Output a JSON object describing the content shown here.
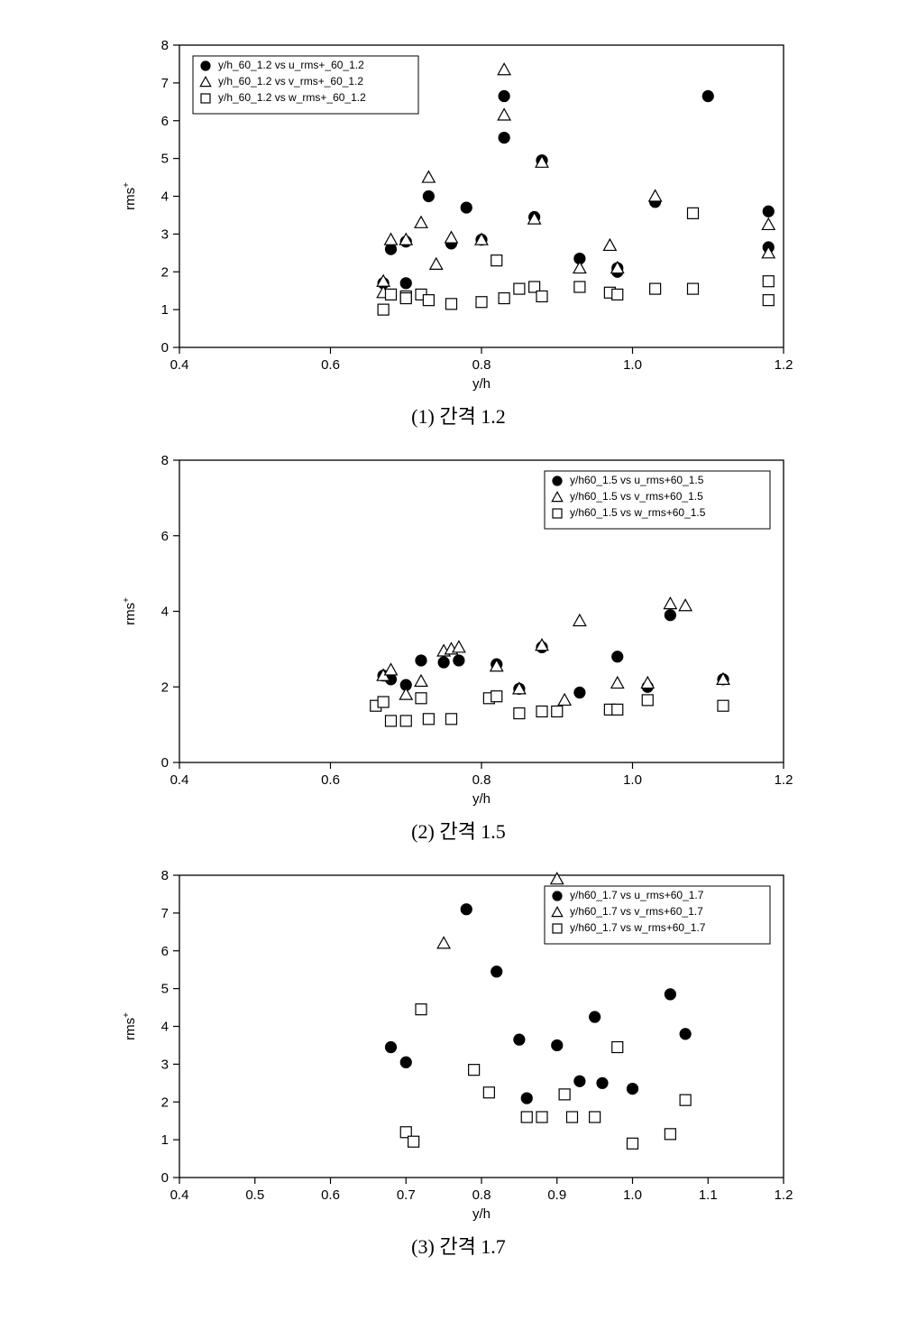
{
  "global": {
    "background": "#ffffff",
    "axis_color": "#000000",
    "marker_stroke": "#000000",
    "marker_fill_circle": "#000000",
    "marker_fill_triangle": "#ffffff",
    "marker_fill_square": "#ffffff",
    "marker_size": 6,
    "font_family": "Arial, Helvetica, sans-serif",
    "caption_font": "Times New Roman, serif",
    "ylabel_raw": "rms+",
    "xlabel": "y/h"
  },
  "charts": [
    {
      "id": "c1",
      "caption": "(1) 간격 1.2",
      "xlim": [
        0.4,
        1.2
      ],
      "ylim": [
        0,
        8
      ],
      "xticks": [
        0.4,
        0.6,
        0.8,
        1.0,
        1.2
      ],
      "yticks": [
        0,
        1,
        2,
        3,
        4,
        5,
        6,
        7,
        8
      ],
      "legend": {
        "pos": "top-left",
        "items": [
          {
            "marker": "circle",
            "label": "y/h_60_1.2 vs u_rms+_60_1.2"
          },
          {
            "marker": "triangle",
            "label": "y/h_60_1.2 vs v_rms+_60_1.2"
          },
          {
            "marker": "square",
            "label": "y/h_60_1.2 vs w_rms+_60_1.2"
          }
        ]
      },
      "series": [
        {
          "marker": "circle",
          "points": [
            [
              0.67,
              1.7
            ],
            [
              0.68,
              2.6
            ],
            [
              0.7,
              2.8
            ],
            [
              0.7,
              1.7
            ],
            [
              0.73,
              4.0
            ],
            [
              0.76,
              2.75
            ],
            [
              0.78,
              3.7
            ],
            [
              0.8,
              2.85
            ],
            [
              0.83,
              5.55
            ],
            [
              0.83,
              6.65
            ],
            [
              0.87,
              3.45
            ],
            [
              0.88,
              4.95
            ],
            [
              0.93,
              2.35
            ],
            [
              0.98,
              2.1
            ],
            [
              0.98,
              2.0
            ],
            [
              1.03,
              3.85
            ],
            [
              1.1,
              6.65
            ],
            [
              1.18,
              3.6
            ],
            [
              1.18,
              2.65
            ]
          ]
        },
        {
          "marker": "triangle",
          "points": [
            [
              0.67,
              1.75
            ],
            [
              0.67,
              1.45
            ],
            [
              0.68,
              2.85
            ],
            [
              0.7,
              2.85
            ],
            [
              0.72,
              3.3
            ],
            [
              0.73,
              4.5
            ],
            [
              0.74,
              2.2
            ],
            [
              0.76,
              2.9
            ],
            [
              0.8,
              2.85
            ],
            [
              0.83,
              7.35
            ],
            [
              0.83,
              6.15
            ],
            [
              0.87,
              3.4
            ],
            [
              0.88,
              4.9
            ],
            [
              0.93,
              2.1
            ],
            [
              0.97,
              2.7
            ],
            [
              0.98,
              2.1
            ],
            [
              1.03,
              4.0
            ],
            [
              1.18,
              3.25
            ],
            [
              1.18,
              2.5
            ]
          ]
        },
        {
          "marker": "square",
          "points": [
            [
              0.67,
              1.0
            ],
            [
              0.68,
              1.4
            ],
            [
              0.7,
              1.35
            ],
            [
              0.7,
              1.3
            ],
            [
              0.72,
              1.4
            ],
            [
              0.73,
              1.25
            ],
            [
              0.76,
              1.15
            ],
            [
              0.8,
              1.2
            ],
            [
              0.82,
              2.3
            ],
            [
              0.83,
              1.3
            ],
            [
              0.85,
              1.55
            ],
            [
              0.87,
              1.6
            ],
            [
              0.88,
              1.35
            ],
            [
              0.93,
              1.6
            ],
            [
              0.97,
              1.45
            ],
            [
              0.98,
              1.4
            ],
            [
              1.03,
              1.55
            ],
            [
              1.08,
              3.55
            ],
            [
              1.08,
              1.55
            ],
            [
              1.18,
              1.75
            ],
            [
              1.18,
              1.25
            ]
          ]
        }
      ]
    },
    {
      "id": "c2",
      "caption": "(2) 간격 1.5",
      "xlim": [
        0.4,
        1.2
      ],
      "ylim": [
        0,
        8
      ],
      "xticks": [
        0.4,
        0.6,
        0.8,
        1.0,
        1.2
      ],
      "yticks": [
        0,
        2,
        4,
        6,
        8
      ],
      "legend": {
        "pos": "top-right",
        "items": [
          {
            "marker": "circle",
            "label": "y/h60_1.5 vs u_rms+60_1.5"
          },
          {
            "marker": "triangle",
            "label": "y/h60_1.5 vs v_rms+60_1.5"
          },
          {
            "marker": "square",
            "label": "y/h60_1.5 vs w_rms+60_1.5"
          }
        ]
      },
      "series": [
        {
          "marker": "circle",
          "points": [
            [
              0.67,
              2.3
            ],
            [
              0.68,
              2.2
            ],
            [
              0.7,
              2.05
            ],
            [
              0.72,
              2.7
            ],
            [
              0.75,
              2.65
            ],
            [
              0.77,
              2.7
            ],
            [
              0.82,
              2.6
            ],
            [
              0.85,
              1.95
            ],
            [
              0.88,
              3.05
            ],
            [
              0.93,
              1.85
            ],
            [
              0.98,
              2.8
            ],
            [
              1.02,
              2.0
            ],
            [
              1.05,
              3.9
            ],
            [
              1.12,
              2.2
            ]
          ]
        },
        {
          "marker": "triangle",
          "points": [
            [
              0.67,
              2.3
            ],
            [
              0.68,
              2.45
            ],
            [
              0.7,
              1.8
            ],
            [
              0.72,
              2.15
            ],
            [
              0.75,
              2.95
            ],
            [
              0.76,
              3.0
            ],
            [
              0.77,
              3.05
            ],
            [
              0.82,
              2.55
            ],
            [
              0.85,
              1.95
            ],
            [
              0.88,
              3.1
            ],
            [
              0.91,
              1.65
            ],
            [
              0.93,
              3.75
            ],
            [
              0.98,
              2.1
            ],
            [
              1.02,
              2.1
            ],
            [
              1.05,
              4.2
            ],
            [
              1.07,
              4.15
            ],
            [
              1.12,
              2.2
            ]
          ]
        },
        {
          "marker": "square",
          "points": [
            [
              0.66,
              1.5
            ],
            [
              0.67,
              1.6
            ],
            [
              0.68,
              1.1
            ],
            [
              0.7,
              1.1
            ],
            [
              0.72,
              1.7
            ],
            [
              0.73,
              1.15
            ],
            [
              0.76,
              1.15
            ],
            [
              0.81,
              1.7
            ],
            [
              0.82,
              1.75
            ],
            [
              0.85,
              1.3
            ],
            [
              0.88,
              1.35
            ],
            [
              0.9,
              1.35
            ],
            [
              0.97,
              1.4
            ],
            [
              0.98,
              1.4
            ],
            [
              1.02,
              1.65
            ],
            [
              1.12,
              1.5
            ]
          ]
        }
      ]
    },
    {
      "id": "c3",
      "caption": "(3) 간격 1.7",
      "xlim": [
        0.4,
        1.2
      ],
      "ylim": [
        0,
        8
      ],
      "xticks": [
        0.4,
        0.5,
        0.6,
        0.7,
        0.8,
        0.9,
        1.0,
        1.1,
        1.2
      ],
      "yticks": [
        0,
        1,
        2,
        3,
        4,
        5,
        6,
        7,
        8
      ],
      "legend": {
        "pos": "top-right",
        "items": [
          {
            "marker": "circle",
            "label": "y/h60_1.7 vs u_rms+60_1.7"
          },
          {
            "marker": "triangle",
            "label": "y/h60_1.7 vs v_rms+60_1.7"
          },
          {
            "marker": "square",
            "label": "y/h60_1.7 vs w_rms+60_1.7"
          }
        ]
      },
      "series": [
        {
          "marker": "circle",
          "points": [
            [
              0.68,
              3.45
            ],
            [
              0.7,
              3.05
            ],
            [
              0.78,
              7.1
            ],
            [
              0.82,
              5.45
            ],
            [
              0.85,
              3.65
            ],
            [
              0.86,
              2.1
            ],
            [
              0.9,
              3.5
            ],
            [
              0.93,
              2.55
            ],
            [
              0.95,
              4.25
            ],
            [
              0.96,
              2.5
            ],
            [
              1.0,
              2.35
            ],
            [
              1.05,
              4.85
            ],
            [
              1.07,
              3.8
            ]
          ]
        },
        {
          "marker": "triangle",
          "points": [
            [
              0.75,
              6.2
            ],
            [
              0.9,
              7.9
            ]
          ]
        },
        {
          "marker": "square",
          "points": [
            [
              0.7,
              1.2
            ],
            [
              0.71,
              0.95
            ],
            [
              0.72,
              4.45
            ],
            [
              0.79,
              2.85
            ],
            [
              0.81,
              2.25
            ],
            [
              0.86,
              1.6
            ],
            [
              0.88,
              1.6
            ],
            [
              0.91,
              2.2
            ],
            [
              0.92,
              1.6
            ],
            [
              0.95,
              1.6
            ],
            [
              0.98,
              3.45
            ],
            [
              1.0,
              0.9
            ],
            [
              1.05,
              1.15
            ],
            [
              1.07,
              2.05
            ]
          ]
        }
      ]
    }
  ]
}
